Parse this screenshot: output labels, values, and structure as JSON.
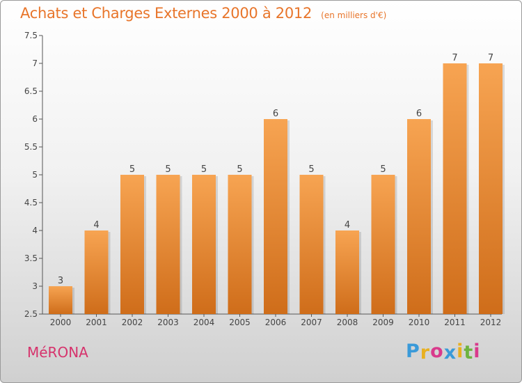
{
  "header": {
    "title": "Achats et Charges Externes 2000 à 2012",
    "unit": "(en milliers d'€)"
  },
  "footer": {
    "commune": "MéRONA",
    "brand_letters": [
      "P",
      "r",
      "o",
      "x",
      "i",
      "t",
      "i"
    ],
    "brand_colors": [
      "#3a9ad9",
      "#e8b020",
      "#d93a8c",
      "#3a9ad9",
      "#e8b020",
      "#6db33f",
      "#d93a8c"
    ]
  },
  "colors": {
    "bar_top": "#f7a452",
    "bar_bottom": "#cf6d1a",
    "axis": "#555555",
    "text": "#444444"
  },
  "chart_data": {
    "type": "bar",
    "title": "Achats et Charges Externes 2000 à 2012",
    "subtitle": "(en milliers d'€)",
    "categories": [
      "2000",
      "2001",
      "2002",
      "2003",
      "2004",
      "2005",
      "2006",
      "2007",
      "2008",
      "2009",
      "2010",
      "2011",
      "2012"
    ],
    "values": [
      3,
      4,
      5,
      5,
      5,
      5,
      6,
      5,
      4,
      5,
      6,
      7,
      7
    ],
    "ylim": [
      2.5,
      7.5
    ],
    "yticks": [
      "2.5",
      "3",
      "3.5",
      "4",
      "4.5",
      "5",
      "5.5",
      "6",
      "6.5",
      "7",
      "7.5"
    ],
    "grid": false,
    "data_labels": true
  }
}
